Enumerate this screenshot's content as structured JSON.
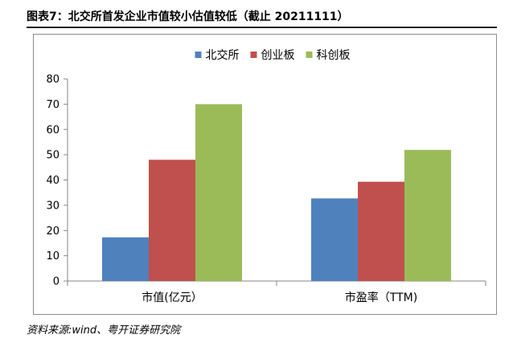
{
  "title": "图表7：北交所首发企业市值较小估值较低（截止 20211111）",
  "source": "资料来源:wind、粤开证券研究院",
  "colors": {
    "北交所": "#4f81bd",
    "创业板": "#c0504d",
    "科创板": "#9bbb59"
  },
  "chart_data": {
    "type": "bar",
    "title": "",
    "categories": [
      "市值(亿元）",
      "市盈率（TTM)"
    ],
    "series": [
      {
        "name": "北交所",
        "values": [
          17.3,
          32.7
        ]
      },
      {
        "name": "创业板",
        "values": [
          48,
          39.3
        ]
      },
      {
        "name": "科创板",
        "values": [
          70,
          51.9
        ]
      }
    ],
    "ylim": [
      0,
      80
    ],
    "yticks": [
      0,
      10,
      20,
      30,
      40,
      50,
      60,
      70,
      80
    ],
    "xlabel": "",
    "ylabel": "",
    "legend": "top-center",
    "grid": false
  }
}
